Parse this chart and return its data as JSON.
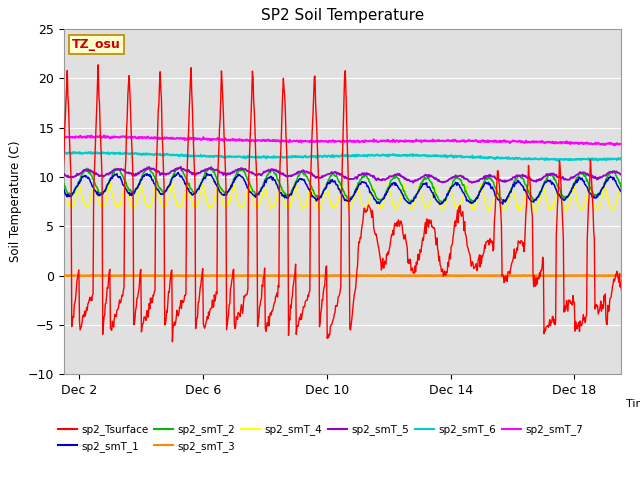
{
  "title": "SP2 Soil Temperature",
  "xlabel": "Time",
  "ylabel": "Soil Temperature (C)",
  "ylim": [
    -10,
    25
  ],
  "xlim": [
    1.5,
    19.5
  ],
  "xtick_positions": [
    2,
    6,
    10,
    14,
    18
  ],
  "xtick_labels": [
    "Dec 2",
    "Dec 6",
    "Dec 10",
    "Dec 14",
    "Dec 18"
  ],
  "ytick_positions": [
    -10,
    -5,
    0,
    5,
    10,
    15,
    20,
    25
  ],
  "annotation_text": "TZ_osu",
  "annotation_box_color": "#ffffcc",
  "annotation_text_color": "#cc0000",
  "annotation_border_color": "#bb8800",
  "series_colors": {
    "sp2_Tsurface": "#ff0000",
    "sp2_smT_1": "#0000cc",
    "sp2_smT_2": "#00bb00",
    "sp2_smT_3": "#ff8800",
    "sp2_smT_4": "#ffff00",
    "sp2_smT_5": "#9900cc",
    "sp2_smT_6": "#00cccc",
    "sp2_smT_7": "#ff00ff"
  },
  "background_color": "#ffffff",
  "plot_bg_color": "#e0e0e0",
  "grid_color": "#ffffff",
  "n_days": 19,
  "start_day": 1,
  "pts_per_day": 48
}
